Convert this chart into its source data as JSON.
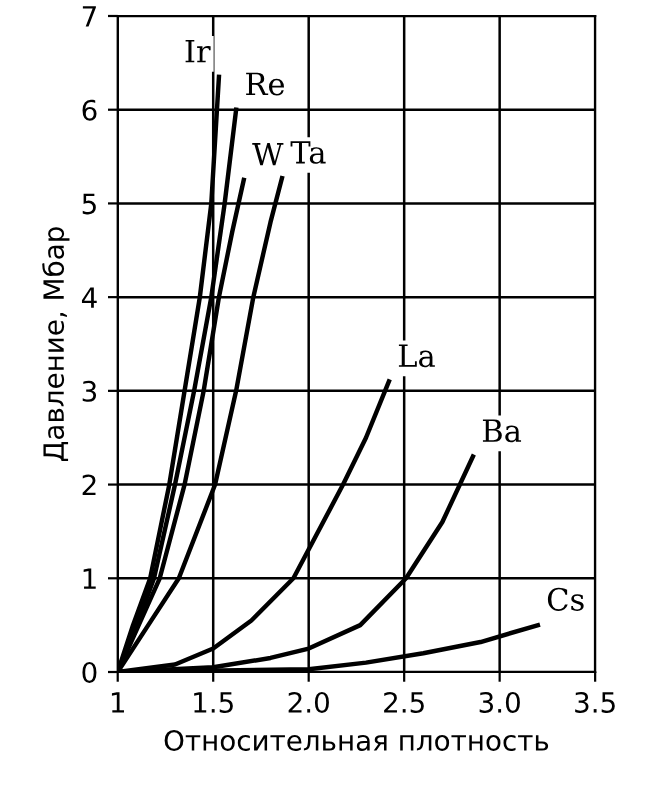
{
  "chart_data": {
    "type": "line",
    "xlabel": "Относительная плотность",
    "ylabel": "Давление, Мбар",
    "xlim": [
      1,
      3.5
    ],
    "ylim": [
      0,
      7
    ],
    "xticks": [
      1,
      1.5,
      {
        "value": 2,
        "label": "2.0"
      },
      2.5,
      {
        "value": 3,
        "label": "3.0"
      },
      3.5
    ],
    "yticks": [
      0,
      1,
      2,
      3,
      4,
      5,
      6,
      7
    ],
    "grid": true,
    "line_style": "solid",
    "marker": "none",
    "series": [
      {
        "name": "Ir",
        "color": "#000000",
        "x": [
          1,
          1.08,
          1.17,
          1.27,
          1.35,
          1.43,
          1.49,
          1.53
        ],
        "values": [
          0,
          0.5,
          1,
          2,
          3,
          4,
          5,
          6.35
        ]
      },
      {
        "name": "Re",
        "color": "#000000",
        "x": [
          1,
          1.1,
          1.19,
          1.3,
          1.4,
          1.49,
          1.56,
          1.62
        ],
        "values": [
          0,
          0.5,
          1,
          2,
          3,
          4,
          5,
          6
        ]
      },
      {
        "name": "W",
        "color": "#000000",
        "x": [
          1,
          1.11,
          1.22,
          1.35,
          1.45,
          1.53,
          1.6,
          1.66
        ],
        "values": [
          0,
          0.5,
          1,
          2,
          3,
          4,
          4.7,
          5.25
        ]
      },
      {
        "name": "Ta",
        "color": "#000000",
        "x": [
          1,
          1.16,
          1.32,
          1.51,
          1.62,
          1.71,
          1.8,
          1.86
        ],
        "values": [
          0,
          0.5,
          1,
          2,
          3,
          4,
          4.8,
          5.27
        ]
      },
      {
        "name": "La",
        "color": "#000000",
        "x": [
          1,
          1.3,
          1.5,
          1.7,
          1.92,
          2.18,
          2.3,
          2.42
        ],
        "values": [
          0,
          0.08,
          0.25,
          0.55,
          1,
          2,
          2.5,
          3.1
        ]
      },
      {
        "name": "Ba",
        "color": "#000000",
        "x": [
          1,
          1.5,
          1.8,
          2.0,
          2.27,
          2.51,
          2.7,
          2.86
        ],
        "values": [
          0,
          0.05,
          0.15,
          0.25,
          0.5,
          1,
          1.6,
          2.3
        ]
      },
      {
        "name": "Cs",
        "color": "#000000",
        "x": [
          1,
          2.0,
          2.3,
          2.6,
          2.9,
          3.2
        ],
        "values": [
          0,
          0.03,
          0.1,
          0.2,
          0.32,
          0.5
        ]
      }
    ]
  }
}
